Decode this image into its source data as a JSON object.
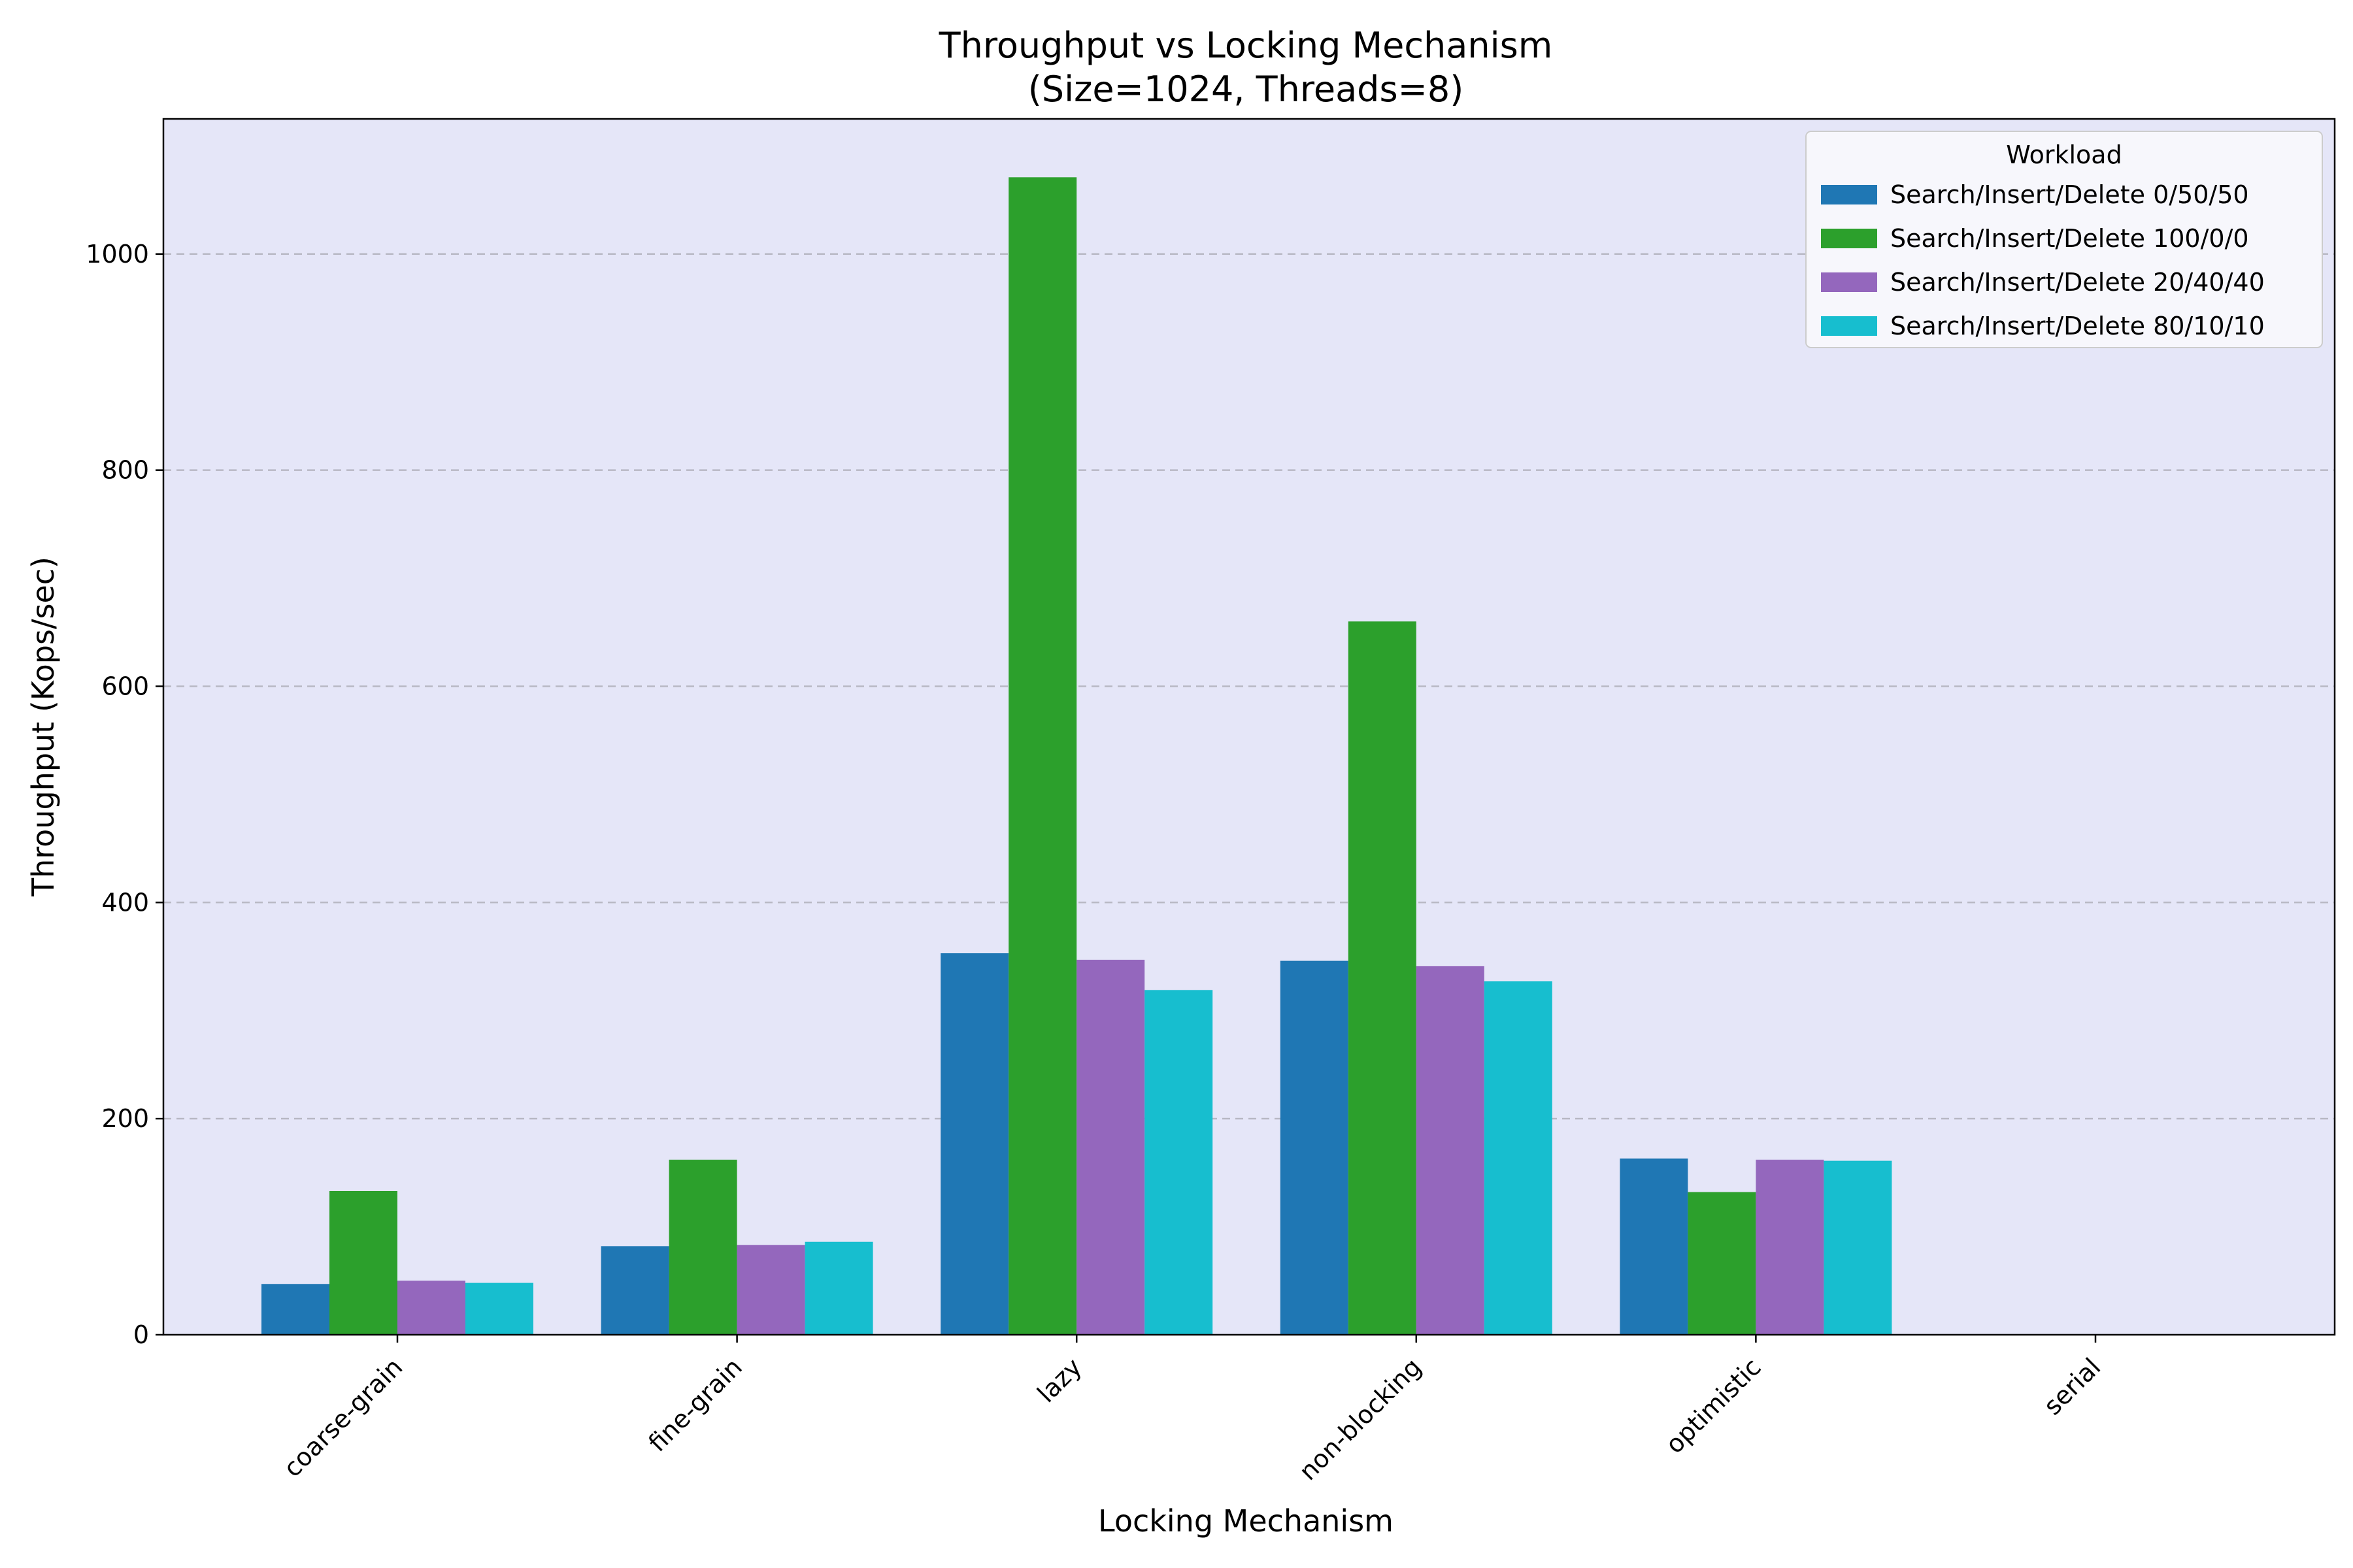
{
  "chart_data": {
    "type": "bar",
    "title": "Throughput vs Locking Mechanism",
    "subtitle": "(Size=1024, Threads=8)",
    "xlabel": "Locking Mechanism",
    "ylabel": "Throughput (Kops/sec)",
    "categories": [
      "coarse-grain",
      "fine-grain",
      "lazy",
      "non-blocking",
      "optimistic",
      "serial"
    ],
    "ylim": [
      0,
      1125
    ],
    "yticks": [
      0,
      200,
      400,
      600,
      800,
      1000
    ],
    "grid": "y-dashed",
    "plot_background": "#e5e6f8",
    "legend": {
      "title": "Workload",
      "position": "top-right"
    },
    "series": [
      {
        "name": "Search/Insert/Delete 0/50/50",
        "color": "#1f77b4",
        "values": [
          47,
          82,
          353,
          346,
          163,
          0
        ]
      },
      {
        "name": "Search/Insert/Delete 100/0/0",
        "color": "#2ca02c",
        "values": [
          133,
          162,
          1071,
          660,
          132,
          0
        ]
      },
      {
        "name": "Search/Insert/Delete 20/40/40",
        "color": "#9467bd",
        "values": [
          50,
          83,
          347,
          341,
          162,
          0
        ]
      },
      {
        "name": "Search/Insert/Delete 80/10/10",
        "color": "#17becf",
        "values": [
          48,
          86,
          319,
          327,
          161,
          0
        ]
      }
    ]
  }
}
